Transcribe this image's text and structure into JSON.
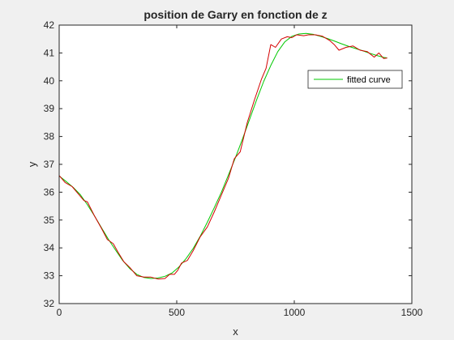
{
  "chart_data": {
    "type": "line",
    "title": "position de Garry en fonction de z",
    "xlabel": "x",
    "ylabel": "y",
    "xlim": [
      0,
      1500
    ],
    "ylim": [
      32,
      42
    ],
    "xticks": [
      0,
      500,
      1000,
      1500
    ],
    "yticks": [
      32,
      33,
      34,
      35,
      36,
      37,
      38,
      39,
      40,
      41,
      42
    ],
    "grid": false,
    "legend_position": "upper-right",
    "legend_entries": [
      "fitted curve"
    ],
    "series": [
      {
        "name": "",
        "color": "#d40000",
        "x": [
          0,
          25,
          55,
          80,
          105,
          120,
          150,
          180,
          205,
          230,
          250,
          275,
          300,
          330,
          360,
          390,
          420,
          450,
          470,
          490,
          505,
          520,
          545,
          570,
          600,
          630,
          660,
          690,
          720,
          745,
          770,
          800,
          830,
          860,
          880,
          900,
          920,
          945,
          970,
          990,
          1010,
          1040,
          1060,
          1090,
          1120,
          1150,
          1170,
          1190,
          1220,
          1250,
          1280,
          1310,
          1340,
          1360,
          1380,
          1395
        ],
        "y": [
          36.6,
          36.35,
          36.2,
          35.95,
          35.7,
          35.65,
          35.15,
          34.7,
          34.3,
          34.15,
          33.85,
          33.5,
          33.3,
          33.0,
          32.95,
          32.95,
          32.88,
          32.9,
          33.05,
          33.05,
          33.2,
          33.45,
          33.55,
          33.9,
          34.4,
          34.75,
          35.3,
          35.9,
          36.5,
          37.2,
          37.45,
          38.5,
          39.3,
          40.05,
          40.45,
          41.3,
          41.2,
          41.5,
          41.58,
          41.55,
          41.65,
          41.62,
          41.65,
          41.65,
          41.6,
          41.45,
          41.3,
          41.1,
          41.2,
          41.25,
          41.1,
          41.05,
          40.85,
          41.0,
          40.8,
          40.82
        ]
      }
    ],
    "fit": {
      "name": "fitted curve",
      "color": "#00c800",
      "x": [
        0,
        30,
        60,
        90,
        120,
        150,
        180,
        210,
        240,
        270,
        300,
        330,
        360,
        390,
        420,
        450,
        480,
        510,
        540,
        570,
        600,
        630,
        660,
        690,
        720,
        750,
        780,
        810,
        840,
        870,
        900,
        930,
        960,
        990,
        1020,
        1050,
        1080,
        1110,
        1140,
        1170,
        1200,
        1230,
        1260,
        1290,
        1320,
        1350,
        1380,
        1395
      ],
      "y": [
        36.58,
        36.38,
        36.17,
        35.91,
        35.55,
        35.15,
        34.72,
        34.3,
        33.92,
        33.55,
        33.26,
        33.05,
        32.94,
        32.9,
        32.92,
        32.98,
        33.1,
        33.32,
        33.62,
        33.98,
        34.42,
        34.92,
        35.45,
        36.0,
        36.62,
        37.25,
        37.92,
        38.62,
        39.32,
        39.98,
        40.55,
        41.05,
        41.4,
        41.6,
        41.68,
        41.7,
        41.67,
        41.6,
        41.52,
        41.43,
        41.33,
        41.24,
        41.16,
        41.08,
        40.99,
        40.91,
        40.84,
        40.82
      ]
    }
  }
}
